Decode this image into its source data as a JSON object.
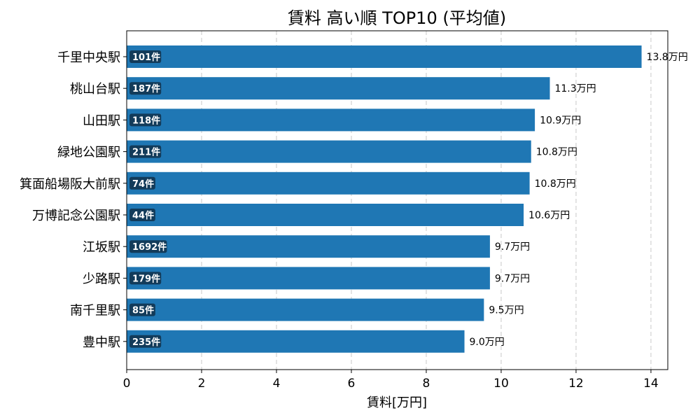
{
  "chart_data": {
    "type": "bar",
    "orientation": "horizontal",
    "title": "賃料 高い順 TOP10 (平均値)",
    "xlabel": "賃料[万円]",
    "ylabel": "",
    "xlim": [
      0,
      14.45
    ],
    "xticks": [
      0,
      2,
      4,
      6,
      8,
      10,
      12,
      14
    ],
    "grid": "x-dashed",
    "bar_color": "#1f77b4",
    "badge_color": "#123b5a",
    "value_unit": "万円",
    "count_unit": "件",
    "categories": [
      "千里中央駅",
      "桃山台駅",
      "山田駅",
      "緑地公園駅",
      "箕面船場阪大前駅",
      "万博記念公園駅",
      "江坂駅",
      "少路駅",
      "南千里駅",
      "豊中駅"
    ],
    "values": [
      13.75,
      11.3,
      10.9,
      10.8,
      10.76,
      10.6,
      9.7,
      9.7,
      9.54,
      9.02
    ],
    "value_labels": [
      "13.8万円",
      "11.3万円",
      "10.9万円",
      "10.8万円",
      "10.8万円",
      "10.6万円",
      "9.7万円",
      "9.7万円",
      "9.5万円",
      "9.0万円"
    ],
    "counts": [
      "101件",
      "187件",
      "118件",
      "211件",
      "74件",
      "44件",
      "1692件",
      "179件",
      "85件",
      "235件"
    ]
  }
}
